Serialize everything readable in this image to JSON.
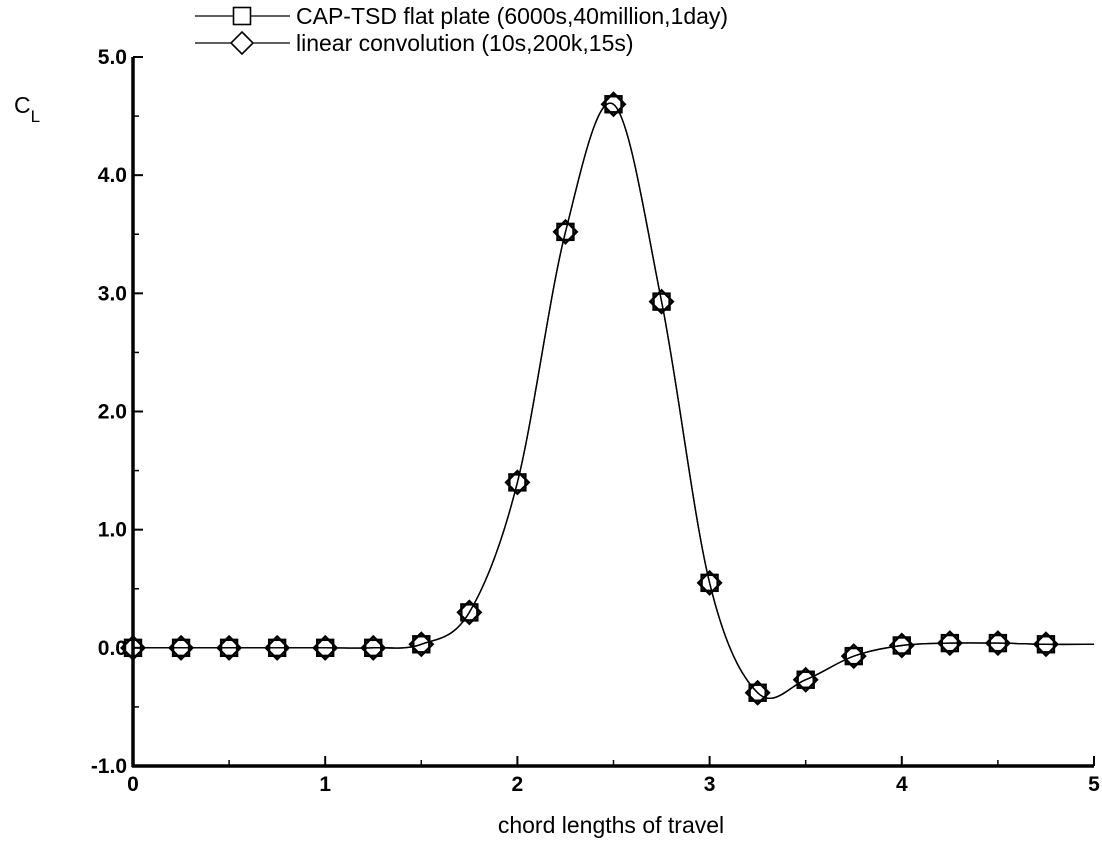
{
  "chart_data": {
    "type": "line",
    "xlabel": "chord lengths of travel",
    "ylabel": "C",
    "ylabel_sub": "L",
    "xlim": [
      0,
      5
    ],
    "ylim": [
      -1.0,
      5.0
    ],
    "xticks": [
      "0",
      "1",
      "2",
      "3",
      "4",
      "5"
    ],
    "yticks": [
      "-1.0",
      "0.0",
      "1.0",
      "2.0",
      "3.0",
      "4.0",
      "5.0"
    ],
    "grid": false,
    "legend_position": "top-center",
    "series": [
      {
        "name": "CAP-TSD flat plate (6000s,40million,1day)",
        "marker": "square",
        "x": [
          0,
          0.25,
          0.5,
          0.75,
          1.0,
          1.25,
          1.5,
          1.75,
          2.0,
          2.25,
          2.5,
          2.75,
          3.0,
          3.25,
          3.5,
          3.75,
          4.0,
          4.25,
          4.5,
          4.75
        ],
        "y": [
          0.0,
          0.0,
          0.0,
          0.0,
          0.0,
          0.0,
          0.03,
          0.3,
          1.4,
          3.52,
          4.6,
          2.93,
          0.55,
          -0.38,
          -0.27,
          -0.07,
          0.02,
          0.04,
          0.04,
          0.03
        ]
      },
      {
        "name": "linear convolution (10s,200k,15s)",
        "marker": "diamond",
        "x": [
          0,
          0.25,
          0.5,
          0.75,
          1.0,
          1.25,
          1.5,
          1.75,
          2.0,
          2.25,
          2.5,
          2.75,
          3.0,
          3.25,
          3.5,
          3.75,
          4.0,
          4.25,
          4.5,
          4.75
        ],
        "y": [
          0.0,
          0.0,
          0.0,
          0.0,
          0.0,
          0.0,
          0.03,
          0.3,
          1.4,
          3.52,
          4.6,
          2.93,
          0.55,
          -0.38,
          -0.27,
          -0.07,
          0.02,
          0.04,
          0.04,
          0.03
        ]
      }
    ]
  }
}
